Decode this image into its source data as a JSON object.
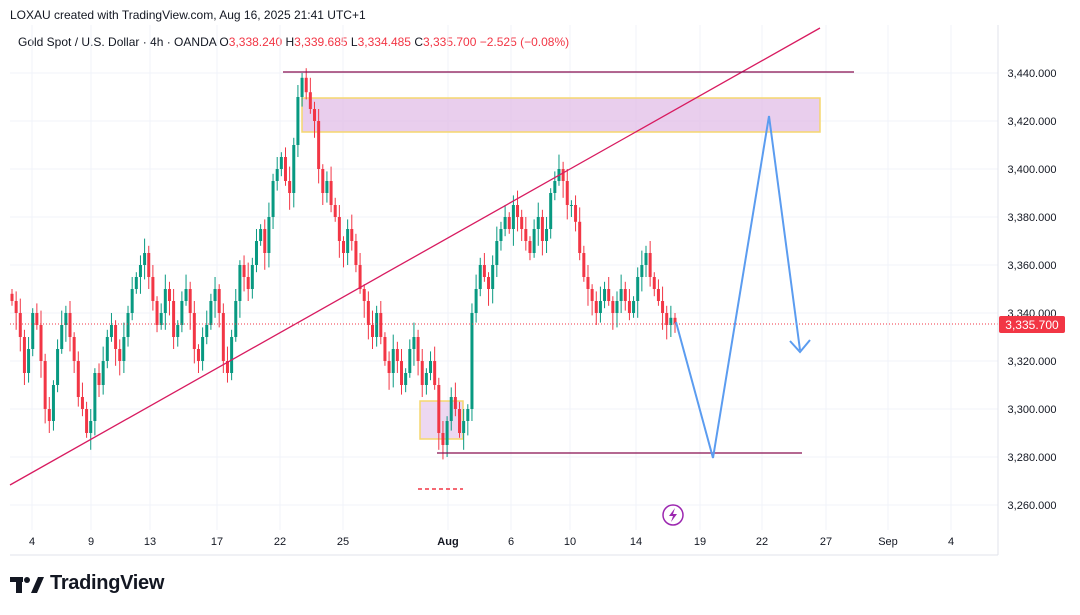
{
  "header": {
    "attribution": "LOXAU created with TradingView.com, Aug 16, 2025 21:41 UTC+1"
  },
  "legend": {
    "symbol": "Gold Spot / U.S. Dollar · 4h · OANDA",
    "o_label": "O",
    "o_value": "3,338.240",
    "h_label": "H",
    "h_value": "3,339.685",
    "l_label": "L",
    "l_value": "3,334.485",
    "c_label": "C",
    "c_value": "3,335.700",
    "change": "−2.525 (−0.08%)"
  },
  "branding": {
    "logo_text": "TradingView"
  },
  "chart_data": {
    "type": "candlestick",
    "y_ticks": [
      "3,440.000",
      "3,420.000",
      "3,400.000",
      "3,380.000",
      "3,360.000",
      "3,340.000",
      "3,320.000",
      "3,300.000",
      "3,280.000",
      "3,260.000"
    ],
    "y_values": [
      3440,
      3420,
      3400,
      3380,
      3360,
      3340,
      3320,
      3300,
      3280,
      3260
    ],
    "x_ticks": [
      "4",
      "9",
      "13",
      "17",
      "22",
      "25",
      "Aug",
      "6",
      "10",
      "14",
      "19",
      "22",
      "27",
      "Sep",
      "4"
    ],
    "last_price_label": "3,335.700",
    "last_price": 3335.7,
    "ylim": [
      3255,
      3470
    ],
    "grid": true,
    "colors": {
      "up": "#089981",
      "down": "#f23645",
      "trendline": "#d81b60",
      "level": "#880e4f",
      "projection": "#5b9cf0",
      "zone_fill": "#e1bee7",
      "zone_border": "#f5d76e",
      "price_tag": "#f23645"
    },
    "closes": [
      3345,
      3340,
      3330,
      3315,
      3325,
      3340,
      3335,
      3320,
      3300,
      3295,
      3310,
      3325,
      3335,
      3340,
      3330,
      3320,
      3305,
      3300,
      3290,
      3295,
      3315,
      3310,
      3320,
      3330,
      3335,
      3325,
      3320,
      3330,
      3340,
      3350,
      3355,
      3360,
      3365,
      3355,
      3345,
      3335,
      3340,
      3350,
      3345,
      3330,
      3335,
      3345,
      3350,
      3340,
      3325,
      3320,
      3330,
      3335,
      3345,
      3350,
      3340,
      3320,
      3315,
      3330,
      3345,
      3360,
      3355,
      3350,
      3360,
      3370,
      3375,
      3365,
      3380,
      3395,
      3400,
      3405,
      3395,
      3390,
      3410,
      3430,
      3438,
      3432,
      3425,
      3420,
      3400,
      3390,
      3395,
      3385,
      3380,
      3370,
      3365,
      3375,
      3370,
      3360,
      3350,
      3345,
      3335,
      3330,
      3340,
      3330,
      3320,
      3315,
      3325,
      3320,
      3310,
      3315,
      3325,
      3330,
      3320,
      3310,
      3315,
      3320,
      3310,
      3290,
      3285,
      3295,
      3305,
      3300,
      3290,
      3295,
      3300,
      3340,
      3350,
      3360,
      3355,
      3350,
      3360,
      3370,
      3375,
      3380,
      3375,
      3385,
      3380,
      3375,
      3370,
      3365,
      3375,
      3380,
      3370,
      3375,
      3390,
      3395,
      3400,
      3395,
      3385,
      3385,
      3378,
      3365,
      3355,
      3350,
      3345,
      3340,
      3345,
      3350,
      3345,
      3340,
      3345,
      3350,
      3345,
      3340,
      3345,
      3355,
      3360,
      3365,
      3355,
      3350,
      3345,
      3340,
      3335,
      3338,
      3335.7
    ]
  }
}
